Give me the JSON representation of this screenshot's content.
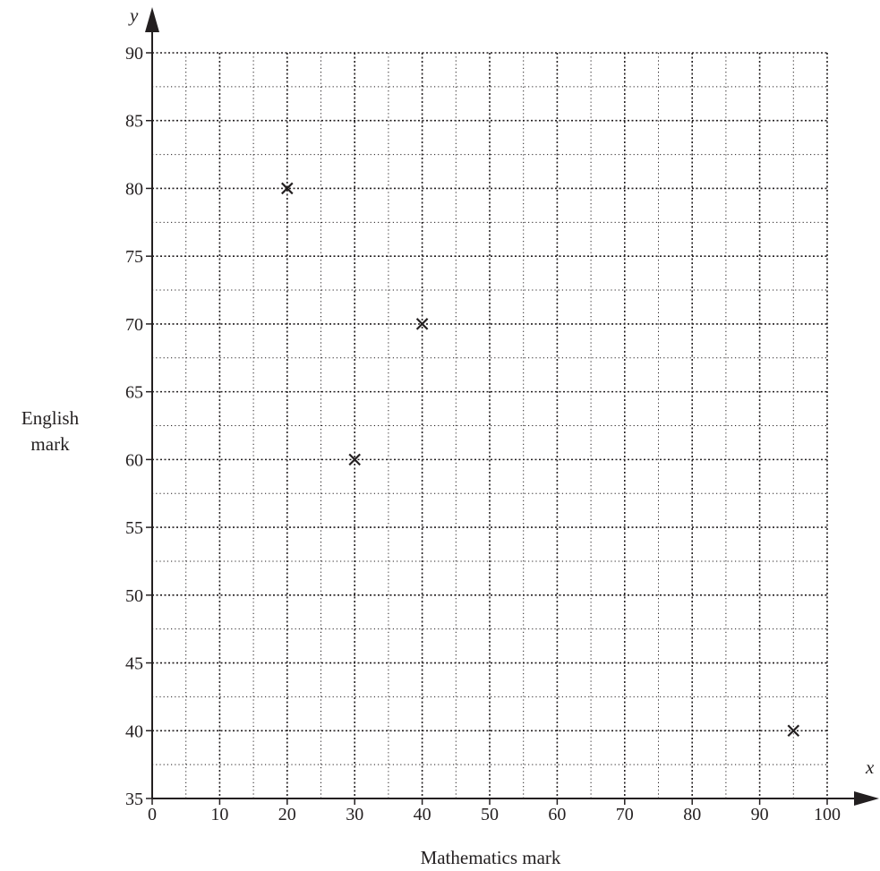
{
  "chart_data": {
    "type": "scatter",
    "title": "",
    "xlabel": "Mathematics mark",
    "ylabel": [
      "English",
      "mark"
    ],
    "x_var": "x",
    "y_var": "y",
    "xlim": [
      0,
      100
    ],
    "ylim": [
      35,
      90
    ],
    "x_ticks": [
      0,
      10,
      20,
      30,
      40,
      50,
      60,
      70,
      80,
      90,
      100
    ],
    "y_ticks": [
      35,
      40,
      45,
      50,
      55,
      60,
      65,
      70,
      75,
      80,
      85,
      90
    ],
    "x_minor_step": 5,
    "y_minor_step": 2.5,
    "grid": true,
    "marker": "cross",
    "points": [
      {
        "x": 20,
        "y": 80
      },
      {
        "x": 30,
        "y": 60
      },
      {
        "x": 40,
        "y": 70
      },
      {
        "x": 95,
        "y": 40
      }
    ],
    "colors": {
      "ink": "#231f20",
      "grid": "#231f20"
    }
  }
}
